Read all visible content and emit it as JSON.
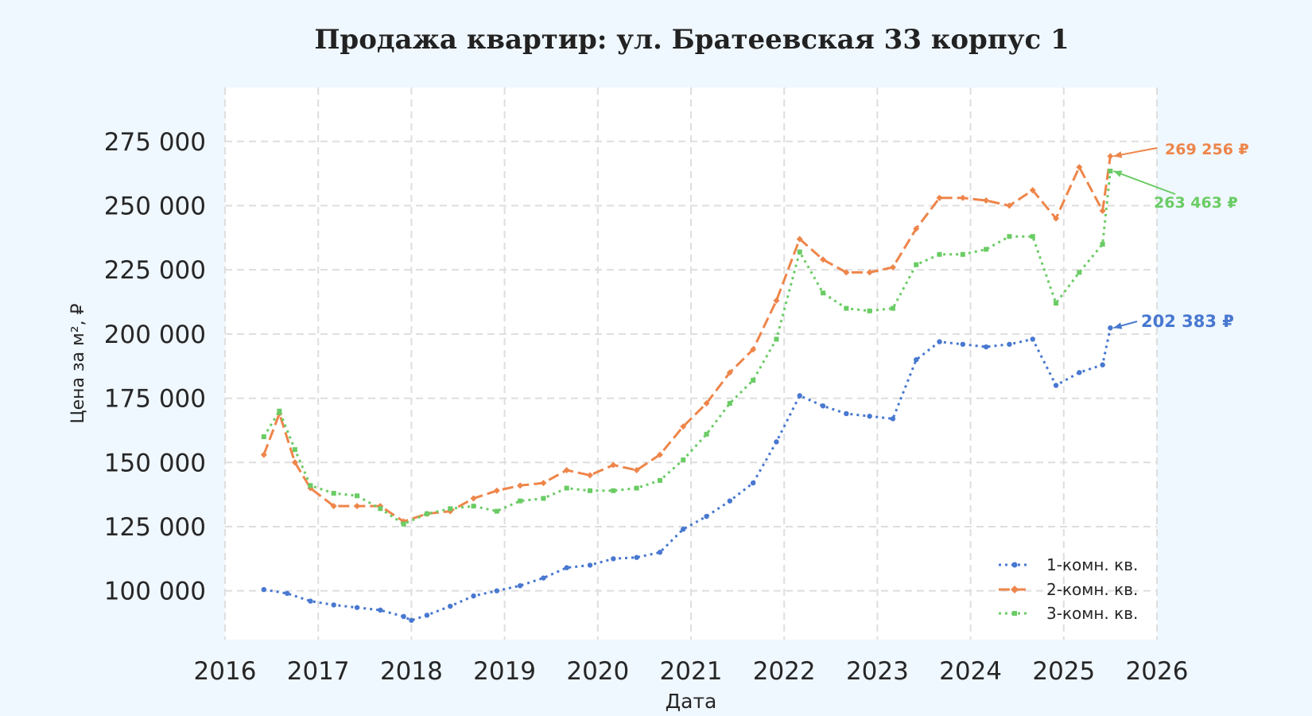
{
  "chart_data": {
    "type": "line",
    "title": "Продажа квартир: ул. Братеевская 33 корпус 1",
    "xlabel": "Дата",
    "ylabel": "Цена за м², ₽",
    "x_ticks": [
      "2016",
      "2017",
      "2018",
      "2019",
      "2020",
      "2021",
      "2022",
      "2023",
      "2024",
      "2025",
      "2026"
    ],
    "y_ticks": [
      "100 000",
      "125 000",
      "150 000",
      "175 000",
      "200 000",
      "225 000",
      "250 000",
      "275 000"
    ],
    "xlim": [
      "2016-01-01",
      "2026-01-01"
    ],
    "ylim": [
      81000,
      296000
    ],
    "grid": true,
    "legend_position": "bottom-right",
    "series": [
      {
        "name": "1-комн. кв.",
        "color": "#4878d0",
        "line_style": "dotted",
        "marker": "dot",
        "last_value_label": "202 383 ₽",
        "x": [
          "2016-06",
          "2016-09",
          "2016-12",
          "2017-03",
          "2017-06",
          "2017-09",
          "2017-12",
          "2018-01",
          "2018-03",
          "2018-06",
          "2018-09",
          "2018-12",
          "2019-03",
          "2019-06",
          "2019-09",
          "2019-12",
          "2020-03",
          "2020-06",
          "2020-09",
          "2020-12",
          "2021-03",
          "2021-06",
          "2021-09",
          "2021-12",
          "2022-03",
          "2022-06",
          "2022-09",
          "2022-12",
          "2023-03",
          "2023-06",
          "2023-09",
          "2023-12",
          "2024-03",
          "2024-06",
          "2024-09",
          "2024-12",
          "2025-03",
          "2025-06",
          "2025-07"
        ],
        "y": [
          100500,
          99000,
          96000,
          94500,
          93500,
          92500,
          90000,
          88500,
          90500,
          94000,
          98000,
          100000,
          102000,
          105000,
          109000,
          110000,
          112500,
          113000,
          115000,
          124000,
          129000,
          135000,
          142000,
          158000,
          176000,
          172000,
          169000,
          168000,
          167000,
          190000,
          197000,
          196000,
          195000,
          196000,
          198000,
          180000,
          185000,
          188000,
          202383
        ]
      },
      {
        "name": "2-комн. кв.",
        "color": "#ee854a",
        "line_style": "dashed",
        "marker": "diamond",
        "last_value_label": "269 256 ₽",
        "x": [
          "2016-06",
          "2016-08",
          "2016-10",
          "2016-12",
          "2017-03",
          "2017-06",
          "2017-09",
          "2017-12",
          "2018-03",
          "2018-06",
          "2018-09",
          "2018-12",
          "2019-03",
          "2019-06",
          "2019-09",
          "2019-12",
          "2020-03",
          "2020-06",
          "2020-09",
          "2020-12",
          "2021-03",
          "2021-06",
          "2021-09",
          "2021-12",
          "2022-03",
          "2022-06",
          "2022-09",
          "2022-12",
          "2023-03",
          "2023-06",
          "2023-09",
          "2023-12",
          "2024-03",
          "2024-06",
          "2024-09",
          "2024-12",
          "2025-03",
          "2025-06",
          "2025-07"
        ],
        "y": [
          153000,
          169000,
          150000,
          140000,
          133000,
          133000,
          133000,
          127000,
          130000,
          131000,
          136000,
          139000,
          141000,
          142000,
          147000,
          145000,
          149000,
          147000,
          153000,
          164000,
          173000,
          185000,
          194000,
          213000,
          237000,
          229000,
          224000,
          224000,
          226000,
          241000,
          253000,
          253000,
          252000,
          250000,
          256000,
          245000,
          265000,
          248000,
          269256
        ]
      },
      {
        "name": "3-комн. кв.",
        "color": "#6acc64",
        "line_style": "dotted",
        "marker": "square",
        "last_value_label": "263 463 ₽",
        "x": [
          "2016-06",
          "2016-08",
          "2016-10",
          "2016-12",
          "2017-03",
          "2017-06",
          "2017-09",
          "2017-12",
          "2018-03",
          "2018-06",
          "2018-09",
          "2018-12",
          "2019-03",
          "2019-06",
          "2019-09",
          "2019-12",
          "2020-03",
          "2020-06",
          "2020-09",
          "2020-12",
          "2021-03",
          "2021-06",
          "2021-09",
          "2021-12",
          "2022-03",
          "2022-06",
          "2022-09",
          "2022-12",
          "2023-03",
          "2023-06",
          "2023-09",
          "2023-12",
          "2024-03",
          "2024-06",
          "2024-09",
          "2024-12",
          "2025-03",
          "2025-06",
          "2025-07"
        ],
        "y": [
          160000,
          170000,
          155000,
          141000,
          138000,
          137000,
          132000,
          126000,
          130000,
          132000,
          133000,
          131000,
          135000,
          136000,
          140000,
          139000,
          139000,
          140000,
          143000,
          151000,
          161000,
          173000,
          182000,
          198000,
          232000,
          216000,
          210000,
          209000,
          210000,
          227000,
          231000,
          231000,
          233000,
          238000,
          238000,
          212000,
          224000,
          235000,
          263463
        ]
      }
    ]
  }
}
